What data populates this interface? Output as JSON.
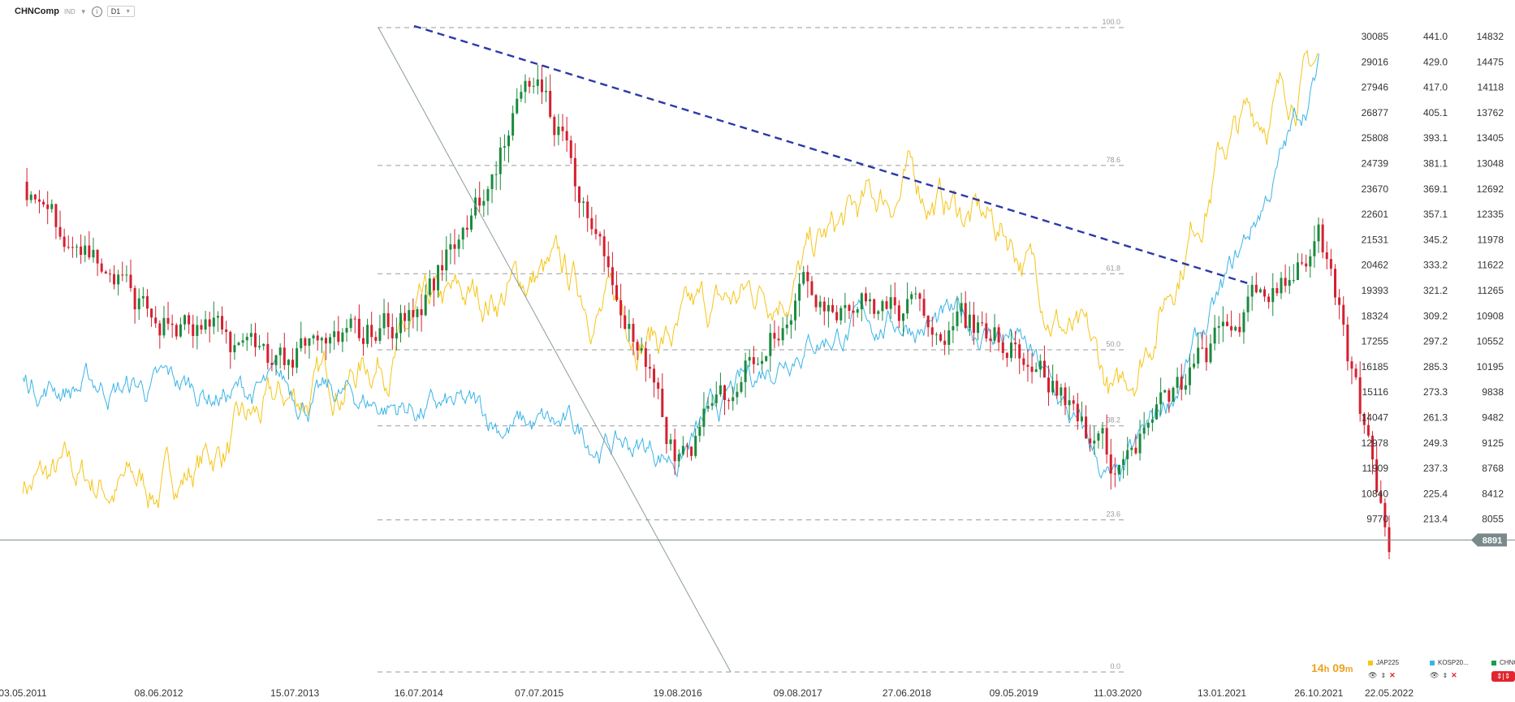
{
  "header": {
    "symbol": "CHNComp",
    "type_badge": "IND",
    "timeframe": "D1"
  },
  "timer": {
    "hours": "14",
    "h_unit": "h",
    "minutes": "09",
    "m_unit": "m"
  },
  "legend": [
    {
      "name": "JAP225",
      "color": "#f5c518"
    },
    {
      "name": "KOSP20...",
      "color": "#3ab4e8"
    },
    {
      "name": "CHNCom...",
      "color": "#1a9e4a"
    }
  ],
  "chn_button_label": "⇕|⇕",
  "colors": {
    "jap": "#f5c518",
    "kospi": "#3ab4e8",
    "up": "#1a8a3e",
    "down": "#d42030",
    "trend": "#2a3aa8",
    "fib": "#9a9a9a",
    "price_tag": "#7a8a8c"
  },
  "chart_data": {
    "type": "line",
    "x_tick_labels": [
      "03.05.2011",
      "08.06.2012",
      "15.07.2013",
      "16.07.2014",
      "07.07.2015",
      "19.08.2016",
      "09.08.2017",
      "27.06.2018",
      "09.05.2019",
      "11.03.2020",
      "13.01.2021",
      "26.10.2021",
      "22.05.2022"
    ],
    "axis_chn": [
      "30085",
      "29016",
      "27946",
      "26877",
      "25808",
      "24739",
      "23670",
      "22601",
      "21531",
      "20462",
      "19393",
      "18324",
      "17255",
      "16185",
      "15116",
      "14047",
      "12978",
      "11909",
      "10840",
      "9770"
    ],
    "axis_kospi": [
      "441.0",
      "429.0",
      "417.0",
      "405.1",
      "393.1",
      "381.1",
      "369.1",
      "357.1",
      "345.2",
      "333.2",
      "321.2",
      "309.2",
      "297.2",
      "285.3",
      "273.3",
      "261.3",
      "249.3",
      "237.3",
      "225.4",
      "213.4"
    ],
    "axis_jap": [
      "14832",
      "14475",
      "14118",
      "13762",
      "13405",
      "13048",
      "12692",
      "12335",
      "11978",
      "11622",
      "11265",
      "10908",
      "10552",
      "10195",
      "9838",
      "9482",
      "9125",
      "8768",
      "8412",
      "8055"
    ],
    "current_price": "8891",
    "fib_levels": [
      "100.0",
      "78.6",
      "61.8",
      "50.0",
      "38.2",
      "23.6",
      "0.0"
    ],
    "series": [
      {
        "name": "JAP225",
        "x": [
          "03.05.2011",
          "08.06.2012",
          "15.07.2013",
          "16.07.2014",
          "07.07.2015",
          "19.08.2016",
          "09.08.2017",
          "27.06.2018",
          "09.05.2019",
          "11.03.2020",
          "13.01.2021",
          "26.10.2021"
        ],
        "values": [
          8600,
          8500,
          9700,
          10700,
          11500,
          10600,
          11600,
          12800,
          12000,
          9600,
          13300,
          14500
        ]
      },
      {
        "name": "KOSP20...",
        "x": [
          "03.05.2011",
          "08.06.2012",
          "15.07.2013",
          "16.07.2014",
          "07.07.2015",
          "19.08.2016",
          "09.08.2017",
          "27.06.2018",
          "09.05.2019",
          "11.03.2020",
          "13.01.2021",
          "26.10.2021"
        ],
        "values": [
          278,
          275,
          272,
          266,
          256,
          244,
          300,
          308,
          300,
          225,
          316,
          425
        ]
      },
      {
        "name": "CHNComp",
        "x": [
          "03.05.2011",
          "08.06.2012",
          "15.07.2013",
          "16.07.2014",
          "07.07.2015",
          "19.08.2016",
          "09.08.2017",
          "27.06.2018",
          "09.05.2019",
          "11.03.2020",
          "13.01.2021",
          "26.10.2021",
          "22.05.2022"
        ],
        "values": [
          24000,
          18000,
          16500,
          18500,
          28500,
          12000,
          19500,
          18500,
          17500,
          12000,
          17500,
          21500,
          9100
        ]
      }
    ]
  }
}
